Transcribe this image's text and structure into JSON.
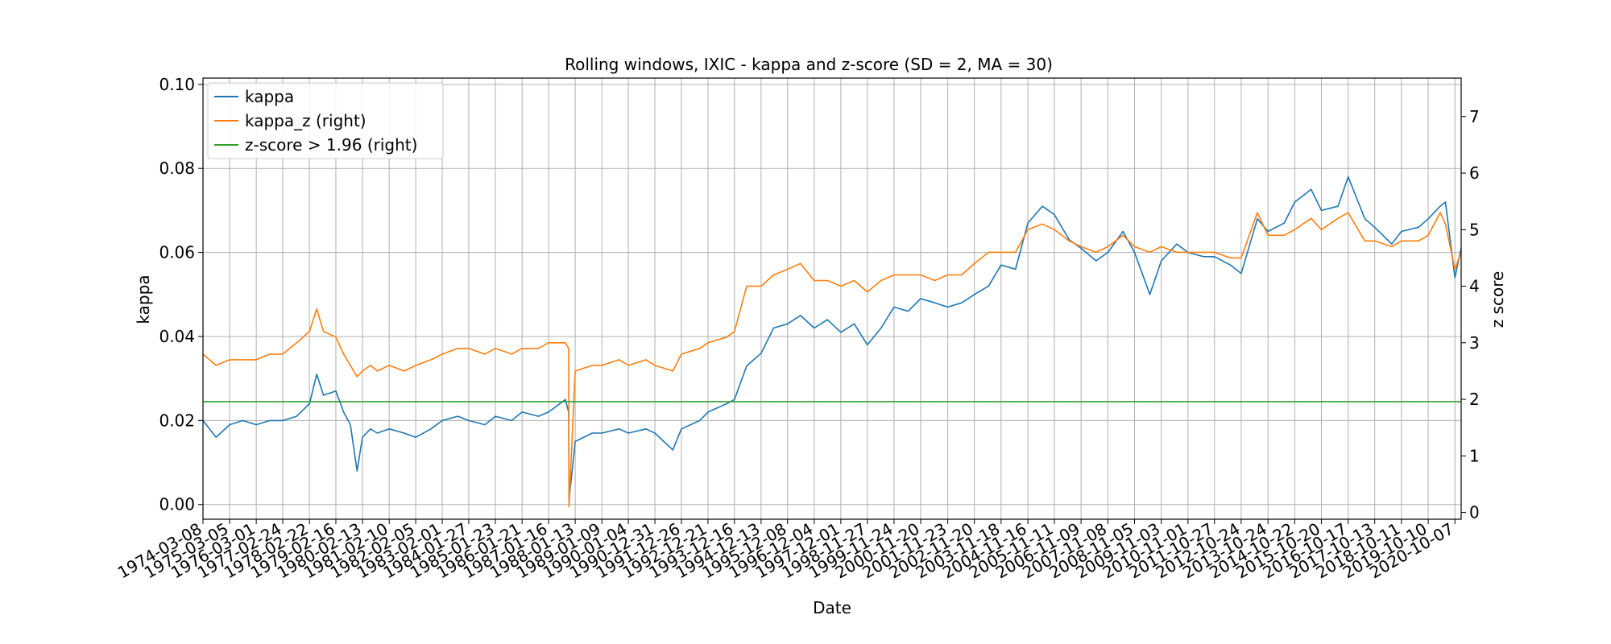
{
  "chart_data": {
    "type": "line",
    "title": "Rolling windows, IXIC - kappa and z-score (SD = 2, MA = 30)",
    "xlabel": "Date",
    "ylabel": "kappa",
    "ylabel_right": "z score",
    "xlim": [
      "1974-03-08",
      "2020-12-31"
    ],
    "ylim": [
      -0.0035,
      0.1015
    ],
    "ylim_right": [
      -0.12,
      7.68
    ],
    "grid": true,
    "legend_position": "upper-left",
    "x_ticks": [
      "1974-03-08",
      "1975-03-05",
      "1976-03-01",
      "1977-02-24",
      "1978-02-22",
      "1979-02-16",
      "1980-02-13",
      "1981-02-10",
      "1982-02-05",
      "1983-02-01",
      "1984-01-27",
      "1985-01-23",
      "1986-01-21",
      "1987-01-16",
      "1988-01-13",
      "1989-01-09",
      "1990-01-04",
      "1990-12-31",
      "1991-12-26",
      "1992-12-21",
      "1993-12-16",
      "1994-12-13",
      "1995-12-08",
      "1996-12-04",
      "1997-12-01",
      "1998-11-27",
      "1999-11-24",
      "2000-11-20",
      "2001-11-23",
      "2002-11-20",
      "2003-11-18",
      "2004-11-16",
      "2005-11-11",
      "2006-11-09",
      "2007-11-08",
      "2008-11-05",
      "2009-11-03",
      "2010-11-01",
      "2011-10-27",
      "2012-10-24",
      "2013-10-24",
      "2014-10-22",
      "2015-10-20",
      "2016-10-17",
      "2017-10-13",
      "2018-10-11",
      "2019-10-10",
      "2020-10-07"
    ],
    "y_ticks": [
      "0.00",
      "0.02",
      "0.04",
      "0.06",
      "0.08",
      "0.10"
    ],
    "y_ticks_right": [
      "0",
      "1",
      "2",
      "3",
      "4",
      "5",
      "6",
      "7"
    ],
    "series": [
      {
        "name": "kappa",
        "axis": "left",
        "color": "#1f77b4",
        "x": [
          "1974-03-08",
          "1974-09-01",
          "1975-03-05",
          "1975-09-01",
          "1976-03-01",
          "1976-09-01",
          "1977-02-24",
          "1977-09-01",
          "1978-02-22",
          "1978-06-01",
          "1978-09-01",
          "1979-02-16",
          "1979-06-01",
          "1979-09-01",
          "1979-12-01",
          "1980-02-13",
          "1980-06-01",
          "1980-09-01",
          "1981-02-10",
          "1981-09-01",
          "1982-02-05",
          "1982-09-01",
          "1983-02-01",
          "1983-09-01",
          "1984-01-27",
          "1984-09-01",
          "1985-01-23",
          "1985-09-01",
          "1986-01-21",
          "1986-09-01",
          "1987-01-16",
          "1987-09-01",
          "1987-10-16",
          "1987-10-20",
          "1988-01-13",
          "1988-09-01",
          "1989-01-09",
          "1989-09-01",
          "1990-01-04",
          "1990-09-01",
          "1990-12-31",
          "1991-09-01",
          "1991-12-26",
          "1992-09-01",
          "1992-12-21",
          "1993-09-01",
          "1993-12-16",
          "1994-06-01",
          "1994-12-13",
          "1995-06-01",
          "1995-12-08",
          "1996-06-01",
          "1996-12-04",
          "1997-06-01",
          "1997-12-01",
          "1998-06-01",
          "1998-11-27",
          "1999-06-01",
          "1999-11-24",
          "2000-06-01",
          "2000-11-20",
          "2001-06-01",
          "2001-11-23",
          "2002-06-01",
          "2002-11-20",
          "2003-06-01",
          "2003-11-18",
          "2004-06-01",
          "2004-11-16",
          "2005-06-01",
          "2005-11-11",
          "2006-06-01",
          "2006-11-09",
          "2007-06-01",
          "2007-11-08",
          "2008-06-01",
          "2008-11-05",
          "2009-06-01",
          "2009-11-03",
          "2010-06-01",
          "2010-11-01",
          "2011-06-01",
          "2011-10-27",
          "2012-06-01",
          "2012-10-24",
          "2013-06-01",
          "2013-10-24",
          "2014-06-01",
          "2014-10-22",
          "2015-06-01",
          "2015-10-20",
          "2016-06-01",
          "2016-10-17",
          "2017-06-01",
          "2017-10-13",
          "2018-06-01",
          "2018-10-11",
          "2019-06-01",
          "2019-10-10",
          "2020-03-20",
          "2020-06-01",
          "2020-10-07",
          "2020-12-31"
        ],
        "y": [
          0.02,
          0.016,
          0.019,
          0.02,
          0.019,
          0.02,
          0.02,
          0.021,
          0.024,
          0.031,
          0.026,
          0.027,
          0.022,
          0.019,
          0.008,
          0.016,
          0.018,
          0.017,
          0.018,
          0.017,
          0.016,
          0.018,
          0.02,
          0.021,
          0.02,
          0.019,
          0.021,
          0.02,
          0.022,
          0.021,
          0.022,
          0.025,
          0.022,
          0.001,
          0.015,
          0.017,
          0.017,
          0.018,
          0.017,
          0.018,
          0.017,
          0.013,
          0.018,
          0.02,
          0.022,
          0.024,
          0.025,
          0.033,
          0.036,
          0.042,
          0.043,
          0.045,
          0.042,
          0.044,
          0.041,
          0.043,
          0.038,
          0.042,
          0.047,
          0.046,
          0.049,
          0.048,
          0.047,
          0.048,
          0.05,
          0.052,
          0.057,
          0.056,
          0.067,
          0.071,
          0.069,
          0.063,
          0.061,
          0.058,
          0.06,
          0.065,
          0.06,
          0.05,
          0.058,
          0.062,
          0.06,
          0.059,
          0.059,
          0.057,
          0.055,
          0.068,
          0.065,
          0.067,
          0.072,
          0.075,
          0.07,
          0.071,
          0.078,
          0.068,
          0.066,
          0.062,
          0.065,
          0.066,
          0.068,
          0.071,
          0.072,
          0.054,
          0.061
        ]
      },
      {
        "name": "kappa_z (right)",
        "axis": "right",
        "color": "#ff7f0e",
        "x": [
          "1974-03-08",
          "1974-09-01",
          "1975-03-05",
          "1975-09-01",
          "1976-03-01",
          "1976-09-01",
          "1977-02-24",
          "1977-09-01",
          "1978-02-22",
          "1978-06-01",
          "1978-09-01",
          "1979-02-16",
          "1979-06-01",
          "1979-09-01",
          "1979-12-01",
          "1980-02-13",
          "1980-06-01",
          "1980-09-01",
          "1981-02-10",
          "1981-09-01",
          "1982-02-05",
          "1982-09-01",
          "1983-02-01",
          "1983-09-01",
          "1984-01-27",
          "1984-09-01",
          "1985-01-23",
          "1985-09-01",
          "1986-01-21",
          "1986-09-01",
          "1987-01-16",
          "1987-09-01",
          "1987-10-16",
          "1987-10-20",
          "1988-01-13",
          "1988-09-01",
          "1989-01-09",
          "1989-09-01",
          "1990-01-04",
          "1990-09-01",
          "1990-12-31",
          "1991-09-01",
          "1991-12-26",
          "1992-09-01",
          "1992-12-21",
          "1993-09-01",
          "1993-12-16",
          "1994-06-01",
          "1994-12-13",
          "1995-06-01",
          "1995-12-08",
          "1996-06-01",
          "1996-12-04",
          "1997-06-01",
          "1997-12-01",
          "1998-06-01",
          "1998-11-27",
          "1999-06-01",
          "1999-11-24",
          "2000-06-01",
          "2000-11-20",
          "2001-06-01",
          "2001-11-23",
          "2002-06-01",
          "2002-11-20",
          "2003-06-01",
          "2003-11-18",
          "2004-06-01",
          "2004-11-16",
          "2005-06-01",
          "2005-11-11",
          "2006-06-01",
          "2006-11-09",
          "2007-06-01",
          "2007-11-08",
          "2008-06-01",
          "2008-11-05",
          "2009-06-01",
          "2009-11-03",
          "2010-06-01",
          "2010-11-01",
          "2011-06-01",
          "2011-10-27",
          "2012-06-01",
          "2012-10-24",
          "2013-06-01",
          "2013-10-24",
          "2014-06-01",
          "2014-10-22",
          "2015-06-01",
          "2015-10-20",
          "2016-06-01",
          "2016-10-17",
          "2017-06-01",
          "2017-10-13",
          "2018-06-01",
          "2018-10-11",
          "2019-06-01",
          "2019-10-10",
          "2020-03-20",
          "2020-06-01",
          "2020-10-07",
          "2020-12-31"
        ],
        "y": [
          2.8,
          2.6,
          2.7,
          2.7,
          2.7,
          2.8,
          2.8,
          3.0,
          3.2,
          3.6,
          3.2,
          3.1,
          2.8,
          2.6,
          2.4,
          2.5,
          2.6,
          2.5,
          2.6,
          2.5,
          2.6,
          2.7,
          2.8,
          2.9,
          2.9,
          2.8,
          2.9,
          2.8,
          2.9,
          2.9,
          3.0,
          3.0,
          2.9,
          0.1,
          2.5,
          2.6,
          2.6,
          2.7,
          2.6,
          2.7,
          2.6,
          2.5,
          2.8,
          2.9,
          3.0,
          3.1,
          3.2,
          4.0,
          4.0,
          4.2,
          4.3,
          4.4,
          4.1,
          4.1,
          4.0,
          4.1,
          3.9,
          4.1,
          4.2,
          4.2,
          4.2,
          4.1,
          4.2,
          4.2,
          4.4,
          4.6,
          4.6,
          4.6,
          5.0,
          5.1,
          5.0,
          4.8,
          4.7,
          4.6,
          4.7,
          4.9,
          4.7,
          4.6,
          4.7,
          4.6,
          4.6,
          4.6,
          4.6,
          4.5,
          4.5,
          5.3,
          4.9,
          4.9,
          5.0,
          5.2,
          5.0,
          5.2,
          5.3,
          4.8,
          4.8,
          4.7,
          4.8,
          4.8,
          4.9,
          5.3,
          5.1,
          4.3,
          4.6
        ]
      },
      {
        "name": "z-score > 1.96 (right)",
        "axis": "right",
        "color": "#2ca02c",
        "x": [
          "1974-03-08",
          "2020-12-31"
        ],
        "y": [
          1.96,
          1.96
        ]
      }
    ]
  }
}
